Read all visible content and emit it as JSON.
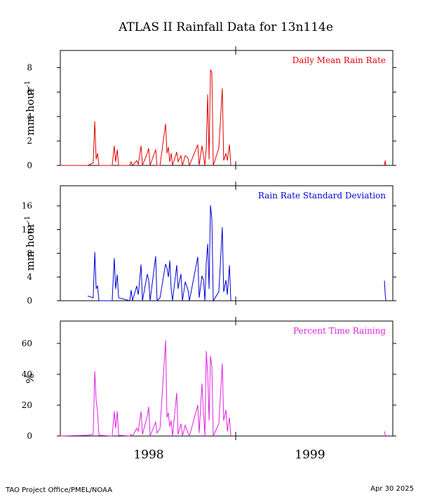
{
  "title": "ATLAS II Rainfall Data for 13n114e",
  "footer_left": "TAO Project Office/PMEL/NOAA",
  "footer_right": "Apr 30 2025",
  "chart_data": [
    {
      "type": "line",
      "name": "Daily Mean Rain Rate",
      "color": "#e00000",
      "ylabel": "mm hour",
      "ylabel_sup": "-1",
      "xlim": [
        1997.992,
        1999.903
      ],
      "xmajor": [
        1999
      ],
      "ylim": [
        0,
        9.4
      ],
      "yticks": [
        0,
        2,
        4,
        6,
        8
      ],
      "x": [
        1997.992,
        1998.149,
        1998.181,
        1998.19,
        1998.198,
        1998.206,
        1998.214,
        1998.29,
        1998.302,
        1998.31,
        1998.319,
        1998.327,
        1998.391,
        1998.399,
        1998.407,
        1998.431,
        1998.44,
        1998.456,
        1998.464,
        1998.492,
        1998.5,
        1998.508,
        1998.54,
        1998.548,
        1998.565,
        1998.597,
        1998.605,
        1998.613,
        1998.621,
        1998.629,
        1998.637,
        1998.661,
        1998.669,
        1998.685,
        1998.694,
        1998.71,
        1998.726,
        1998.734,
        1998.782,
        1998.79,
        1998.806,
        1998.815,
        1998.823,
        1998.831,
        1998.839,
        1998.847,
        1998.855,
        1998.863,
        1998.871,
        1998.903,
        1998.923,
        1998.931,
        1998.944,
        1998.952,
        1998.964,
        1998.972,
        1999.4,
        1999.855,
        1999.859,
        1999.863
      ],
      "values": [
        0,
        0,
        0.2,
        3.6,
        0.5,
        1.0,
        0,
        0,
        1.6,
        0.3,
        1.3,
        0,
        0,
        0.3,
        0,
        0.4,
        0.1,
        1.6,
        0,
        1.0,
        1.4,
        0,
        1.3,
        0,
        0,
        3.4,
        1.0,
        1.5,
        0.3,
        1.0,
        0,
        1.1,
        0.3,
        0.8,
        0,
        0.8,
        0.6,
        0,
        1.7,
        0,
        1.6,
        0.8,
        0,
        1.5,
        5.8,
        0.5,
        7.8,
        7.6,
        0,
        1.4,
        6.3,
        0.4,
        1.0,
        0.4,
        1.7,
        0,
        null,
        0,
        0.4,
        0
      ]
    },
    {
      "type": "line",
      "name": "Rain Rate Standard Deviation",
      "color": "#0000d0",
      "ylabel": "mm hour",
      "ylabel_sup": "-1",
      "xlim": [
        1997.992,
        1999.903
      ],
      "xmajor": [
        1999
      ],
      "ylim": [
        0,
        19.4
      ],
      "yticks": [
        0,
        4,
        8,
        12,
        16
      ],
      "x": [
        1997.992,
        1998.149,
        1998.181,
        1998.19,
        1998.198,
        1998.206,
        1998.214,
        1998.29,
        1998.302,
        1998.31,
        1998.319,
        1998.327,
        1998.391,
        1998.399,
        1998.407,
        1998.431,
        1998.44,
        1998.456,
        1998.464,
        1998.492,
        1998.5,
        1998.508,
        1998.54,
        1998.548,
        1998.565,
        1998.597,
        1998.605,
        1998.613,
        1998.621,
        1998.629,
        1998.637,
        1998.661,
        1998.669,
        1998.685,
        1998.694,
        1998.71,
        1998.726,
        1998.734,
        1998.782,
        1998.79,
        1998.806,
        1998.815,
        1998.823,
        1998.831,
        1998.839,
        1998.847,
        1998.855,
        1998.863,
        1998.871,
        1998.903,
        1998.923,
        1998.931,
        1998.944,
        1998.952,
        1998.964,
        1998.972,
        1999.4,
        1999.855,
        1999.859,
        1999.863
      ],
      "values": [
        null,
        0.8,
        0.5,
        8.2,
        2,
        2.5,
        0,
        0,
        7.2,
        2,
        4.4,
        0.5,
        0,
        1.8,
        0,
        2.5,
        1,
        6.1,
        0,
        4.5,
        3.5,
        0,
        7.5,
        0,
        0.5,
        6.2,
        5.5,
        4,
        6.8,
        2,
        0,
        6,
        2,
        4.5,
        0,
        3.2,
        1.8,
        0,
        7.4,
        0.5,
        4.2,
        3.5,
        0,
        6.5,
        9.6,
        2,
        16.1,
        13.8,
        0,
        1.5,
        12.4,
        1.5,
        3.5,
        1,
        6,
        0,
        null,
        3.4,
        1.2,
        0
      ]
    },
    {
      "type": "line",
      "name": "Percent Time Raining",
      "color": "#e020e0",
      "ylabel": "%",
      "xlim": [
        1997.992,
        1999.903
      ],
      "xmajor": [
        1999
      ],
      "ylim": [
        0,
        74.5
      ],
      "yticks": [
        0,
        20,
        40,
        60
      ],
      "xticks": [
        {
          "value": 1998.5,
          "label": "1998"
        },
        {
          "value": 1999.427,
          "label": "1999"
        }
      ],
      "x": [
        1997.992,
        1998.149,
        1998.181,
        1998.19,
        1998.198,
        1998.206,
        1998.214,
        1998.29,
        1998.302,
        1998.31,
        1998.319,
        1998.327,
        1998.391,
        1998.399,
        1998.407,
        1998.431,
        1998.44,
        1998.456,
        1998.464,
        1998.492,
        1998.5,
        1998.508,
        1998.54,
        1998.548,
        1998.565,
        1998.597,
        1998.605,
        1998.613,
        1998.621,
        1998.629,
        1998.637,
        1998.661,
        1998.669,
        1998.685,
        1998.694,
        1998.71,
        1998.726,
        1998.734,
        1998.782,
        1998.79,
        1998.806,
        1998.815,
        1998.823,
        1998.831,
        1998.839,
        1998.847,
        1998.855,
        1998.863,
        1998.871,
        1998.903,
        1998.923,
        1998.931,
        1998.944,
        1998.952,
        1998.964,
        1998.972,
        1999.4,
        1999.855,
        1999.859,
        1999.863
      ],
      "values": [
        0,
        0.5,
        1,
        42,
        23,
        16,
        0.5,
        0,
        16,
        5,
        16,
        0.5,
        0,
        1,
        0,
        5,
        3,
        16,
        1,
        13,
        19,
        0,
        9,
        2,
        5,
        62,
        12,
        15,
        6,
        10,
        0,
        28,
        1,
        8,
        0,
        7,
        2,
        0,
        20,
        2,
        34,
        15,
        0,
        55,
        40,
        10,
        52,
        45,
        0,
        8,
        47,
        10,
        17,
        3,
        12,
        0,
        null,
        3,
        1,
        0
      ]
    }
  ]
}
